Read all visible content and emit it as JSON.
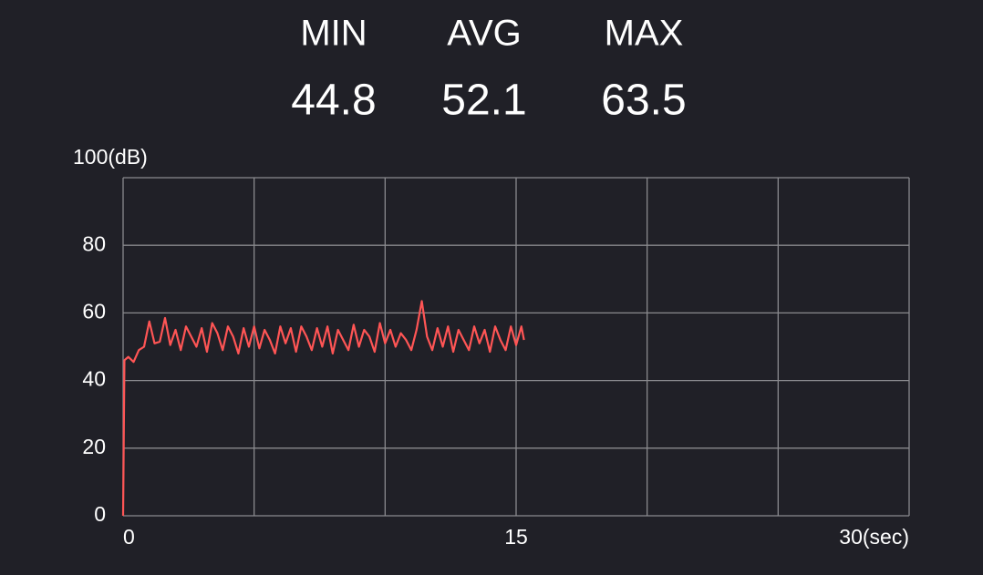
{
  "stats": [
    {
      "label": "MIN",
      "value": 44.8
    },
    {
      "label": "AVG",
      "value": 52.1
    },
    {
      "label": "MAX",
      "value": 63.5
    }
  ],
  "chart_data": {
    "type": "line",
    "xlim": [
      0,
      30
    ],
    "ylim": [
      0,
      100
    ],
    "xticks": [
      0,
      15,
      {
        "value": 30,
        "label": "30(sec)"
      }
    ],
    "yticks": [
      0,
      20,
      40,
      60,
      80,
      {
        "value": 100,
        "label": "100(dB)"
      }
    ],
    "xgrid": [
      0,
      5,
      10,
      15,
      20,
      25,
      30
    ],
    "grid": true,
    "series": [
      {
        "color": "#ff5555",
        "x": [
          0,
          0.05,
          0.2,
          0.4,
          0.6,
          0.8,
          1.0,
          1.2,
          1.4,
          1.6,
          1.8,
          2.0,
          2.2,
          2.4,
          2.6,
          2.8,
          3.0,
          3.2,
          3.4,
          3.6,
          3.8,
          4.0,
          4.2,
          4.4,
          4.6,
          4.8,
          5.0,
          5.2,
          5.4,
          5.6,
          5.8,
          6.0,
          6.2,
          6.4,
          6.6,
          6.8,
          7.0,
          7.2,
          7.4,
          7.6,
          7.8,
          8.0,
          8.2,
          8.4,
          8.6,
          8.8,
          9.0,
          9.2,
          9.4,
          9.6,
          9.8,
          10.0,
          10.2,
          10.4,
          10.6,
          10.8,
          11.0,
          11.2,
          11.4,
          11.6,
          11.8,
          12.0,
          12.2,
          12.4,
          12.6,
          12.8,
          13.0,
          13.2,
          13.4,
          13.6,
          13.8,
          14.0,
          14.2,
          14.4,
          14.6,
          14.8,
          15.0,
          15.2,
          15.3
        ],
        "values": [
          0,
          46,
          47,
          45.5,
          49,
          50,
          57.5,
          51,
          51.5,
          58.5,
          50.5,
          55,
          49,
          56,
          53,
          50,
          55.5,
          48.5,
          57,
          54,
          49,
          56,
          53,
          48,
          55.5,
          50,
          56,
          49.5,
          55,
          52,
          48,
          56,
          51,
          55.5,
          48.5,
          56,
          53,
          49,
          55.5,
          50,
          56,
          48,
          55,
          52,
          49,
          56.5,
          50,
          55,
          53,
          48.5,
          57,
          51,
          55,
          50,
          54,
          52,
          49,
          55,
          63.5,
          53,
          49,
          55.5,
          50,
          56,
          48.5,
          55,
          52,
          49,
          56,
          51,
          55,
          48.5,
          56,
          52,
          49,
          56,
          50.5,
          56,
          52
        ]
      }
    ]
  }
}
